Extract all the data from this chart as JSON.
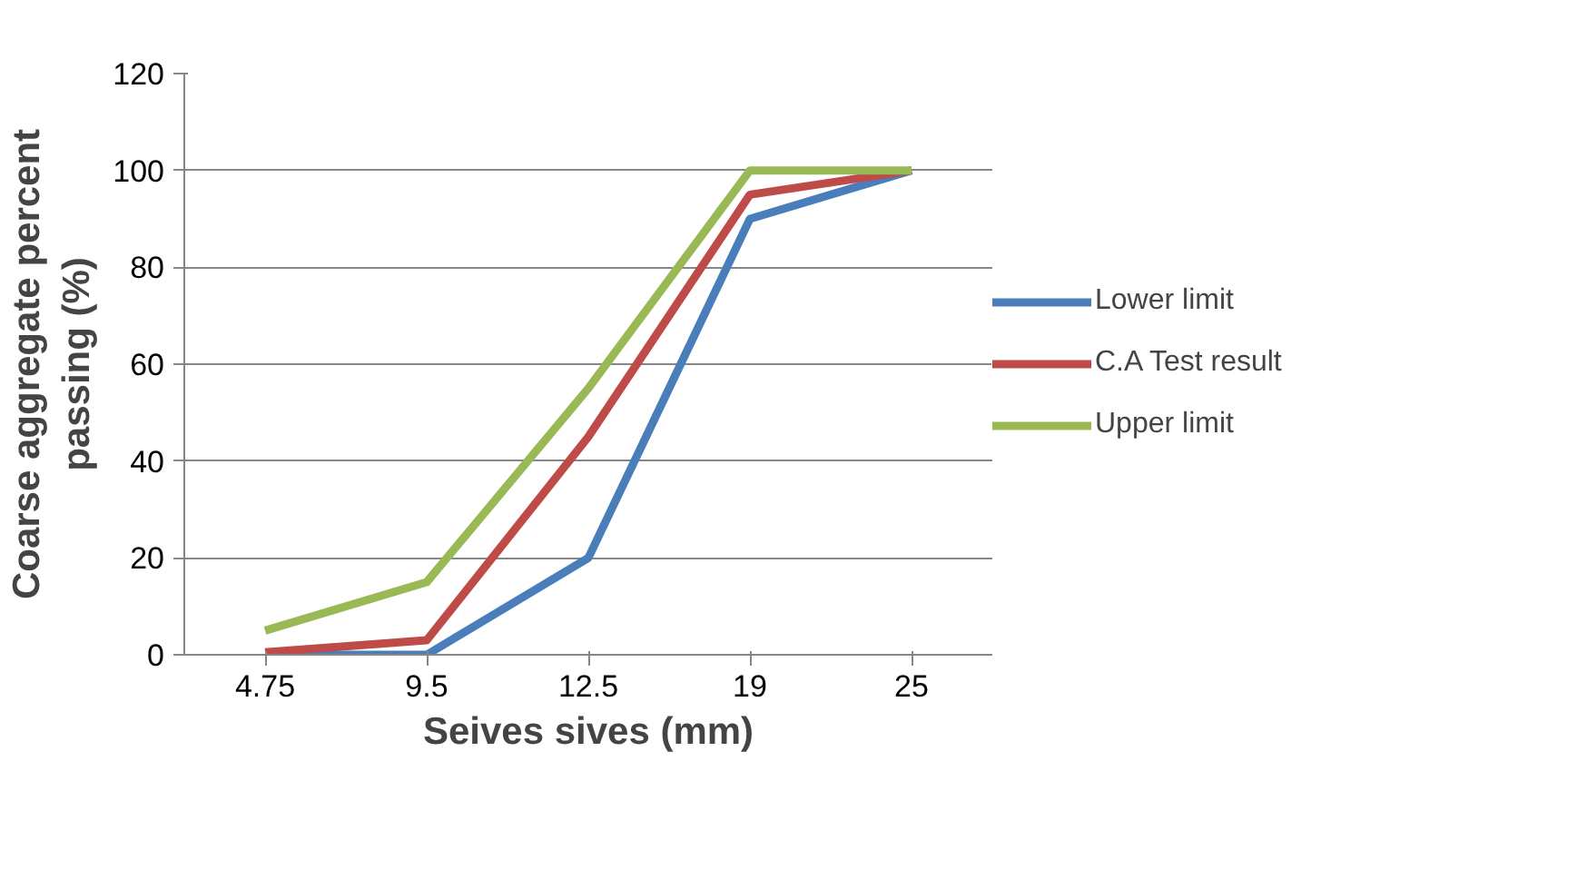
{
  "chart_data": {
    "type": "line",
    "xlabel": "Seives sives (mm)",
    "ylabel": "Coarse aggregate percent passing (%)",
    "categories": [
      "4.75",
      "9.5",
      "12.5",
      "19",
      "25"
    ],
    "series": [
      {
        "name": "Lower limit",
        "color": "#4a7ebb",
        "values": [
          0,
          0,
          20,
          90,
          100
        ]
      },
      {
        "name": "C.A Test result",
        "color": "#be4b48",
        "values": [
          0.5,
          3,
          45,
          95,
          100
        ]
      },
      {
        "name": "Upper limit",
        "color": "#98b954",
        "values": [
          5,
          15,
          55,
          100,
          100
        ]
      }
    ],
    "ylim": [
      0,
      120
    ],
    "yticks": [
      0,
      20,
      40,
      60,
      80,
      100,
      120
    ],
    "grid": "y",
    "legend": "right",
    "marker": "none",
    "line_style": "solid"
  }
}
